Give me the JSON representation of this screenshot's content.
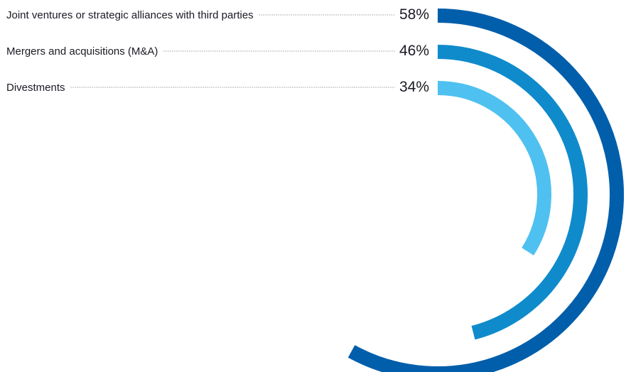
{
  "chart_data": {
    "type": "radial-bar",
    "scale_max": 100,
    "series": [
      {
        "label": "Joint ventures or strategic alliances with third parties",
        "value": 58,
        "value_text": "58%",
        "color": "#005eaa"
      },
      {
        "label": "Mergers and acquisitions (M&A)",
        "value": 46,
        "value_text": "46%",
        "color": "#0f8bcc"
      },
      {
        "label": "Divestments",
        "value": 34,
        "value_text": "34%",
        "color": "#4fc1f0"
      }
    ]
  }
}
